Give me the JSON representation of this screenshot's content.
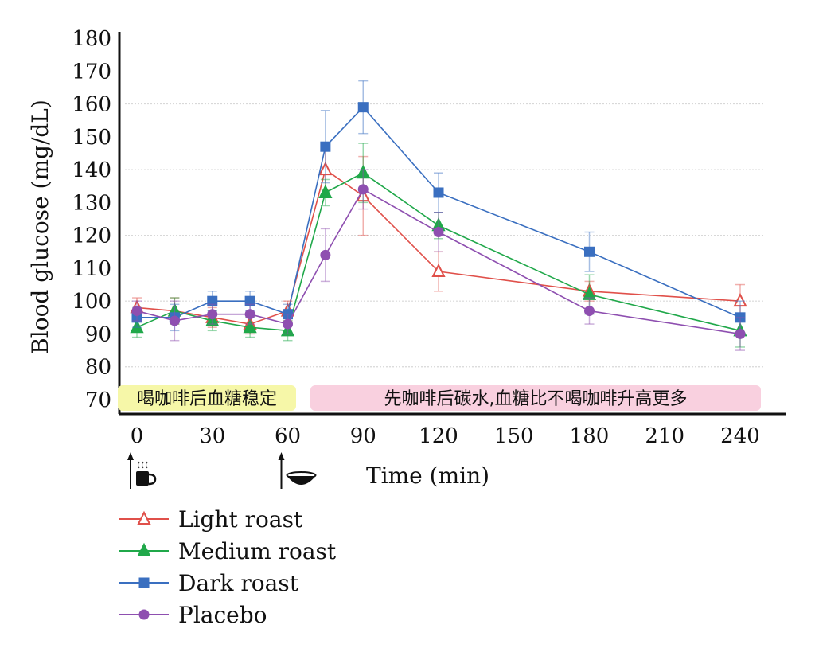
{
  "chart_data": {
    "type": "line",
    "xlabel": "Time (min)",
    "ylabel": "Blood glucose (mg/dL)",
    "xlim": [
      0,
      250
    ],
    "ylim": [
      70,
      180
    ],
    "xticks": [
      0,
      30,
      60,
      90,
      120,
      150,
      180,
      210,
      240
    ],
    "yticks": [
      70,
      80,
      90,
      100,
      110,
      120,
      130,
      140,
      150,
      160,
      170,
      180
    ],
    "gridlines_y": [
      80,
      100,
      120,
      140,
      160
    ],
    "legend_position": "bottom-left",
    "x": [
      0,
      15,
      30,
      45,
      60,
      75,
      90,
      120,
      180,
      240
    ],
    "series": [
      {
        "name": "Light roast",
        "color": "#e0504a",
        "marker": "triangle-open",
        "values": [
          98,
          97,
          95,
          93,
          97,
          140,
          132,
          109,
          103,
          100
        ],
        "errors": [
          3,
          4,
          3,
          3,
          3,
          6,
          12,
          6,
          3,
          5
        ]
      },
      {
        "name": "Medium roast",
        "color": "#20a84a",
        "marker": "triangle-filled",
        "values": [
          92,
          97,
          94,
          92,
          91,
          133,
          139,
          123,
          102,
          91
        ],
        "errors": [
          3,
          4,
          3,
          3,
          3,
          4,
          9,
          4,
          6,
          5
        ]
      },
      {
        "name": "Dark roast",
        "color": "#3a6fc0",
        "marker": "square",
        "values": [
          95,
          95,
          100,
          100,
          96,
          147,
          159,
          133,
          115,
          95
        ],
        "errors": [
          3,
          4,
          3,
          3,
          3,
          11,
          8,
          6,
          6,
          5
        ]
      },
      {
        "name": "Placebo",
        "color": "#8e4fb0",
        "marker": "circle",
        "values": [
          97,
          94,
          96,
          96,
          93,
          114,
          134,
          121,
          97,
          90
        ],
        "errors": [
          3,
          6,
          3,
          3,
          3,
          8,
          6,
          6,
          4,
          5
        ]
      }
    ],
    "annotations": [
      {
        "text": "喝咖啡后血糖稳定",
        "background": "#f6f7a8"
      },
      {
        "text": "先咖啡后碳水,血糖比不喝咖啡升高更多",
        "background": "#f9d0df"
      }
    ],
    "event_markers": [
      {
        "x": 0,
        "icon": "coffee-cup-icon"
      },
      {
        "x": 60,
        "icon": "bowl-icon"
      }
    ]
  }
}
